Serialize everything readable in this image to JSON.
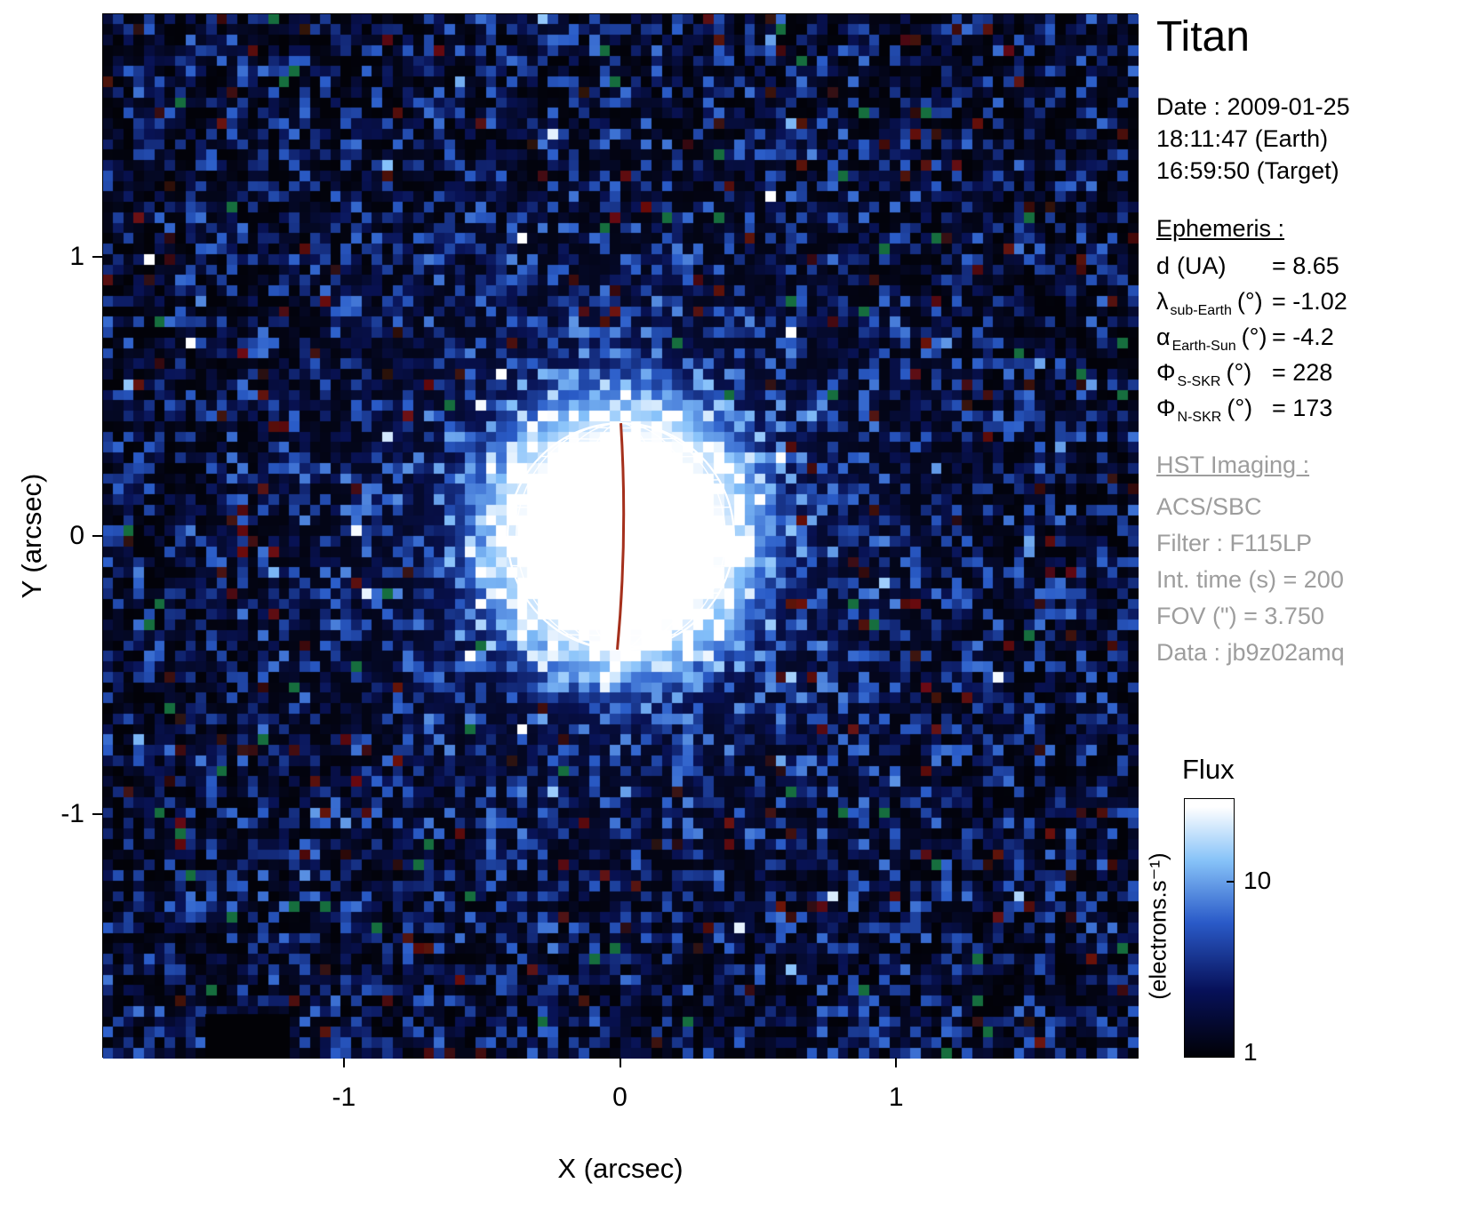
{
  "figure_title": "Titan",
  "info_panel": {
    "title": "Titan",
    "date_line": "Date : 2009-01-25",
    "time_earth": "18:11:47 (Earth)",
    "time_target": "16:59:50 (Target)",
    "ephemeris_header": "Ephemeris :",
    "ephemeris": [
      {
        "symbol": "d",
        "sub": "",
        "unit": "(UA)",
        "value": "= 8.65"
      },
      {
        "symbol": "λ",
        "sub": "sub-Earth",
        "unit": "(°)",
        "value": "= -1.02"
      },
      {
        "symbol": "α",
        "sub": "Earth-Sun",
        "unit": "(°)",
        "value": "= -4.2"
      },
      {
        "symbol": "Φ",
        "sub": "S-SKR",
        "unit": "(°)",
        "value": "= 228"
      },
      {
        "symbol": "Φ",
        "sub": "N-SKR",
        "unit": "(°)",
        "value": "= 173"
      }
    ],
    "hst_header": "HST Imaging :",
    "hst_lines": [
      "ACS/SBC",
      "Filter : F115LP",
      "Int. time (s) = 200",
      "FOV (\") = 3.750",
      "Data : jb9z02amq"
    ]
  },
  "chart_data": {
    "type": "heatmap",
    "title": "Titan",
    "xlabel": "X (arcsec)",
    "ylabel": "Y (arcsec)",
    "xlim": [
      -1.875,
      1.875
    ],
    "ylim": [
      -1.875,
      1.875
    ],
    "xticks": [
      -1,
      0,
      1
    ],
    "yticks": [
      1,
      0,
      -1
    ],
    "xtick_labels": [
      "-1",
      "0",
      "1"
    ],
    "ytick_labels": [
      "1",
      "0",
      "-1"
    ],
    "grid": false,
    "fov_arcsec": 3.75,
    "background": "noisy sky image: dark blue/black speckle with sparse dark-red, green and white specks; faint blue halo around the target",
    "colormap": "log-flux black -> dark blue -> blue -> light blue -> white",
    "noise_seed": 42,
    "colorbar": {
      "title": "Flux",
      "units": "(electrons.s⁻¹)",
      "scale": "log",
      "min": 1,
      "max": 30,
      "tick_labels": [
        "10",
        "1"
      ]
    },
    "target": {
      "name": "Titan",
      "center_x_arcsec": 0,
      "center_y_arcsec": 0,
      "radius_arcsec": 0.41,
      "disk_flux": "bright disk near colorbar maximum (white / light blue, ~20-30 electrons/s)",
      "overlay": "white latitude-longitude wireframe grid with dark-red central meridian"
    }
  }
}
